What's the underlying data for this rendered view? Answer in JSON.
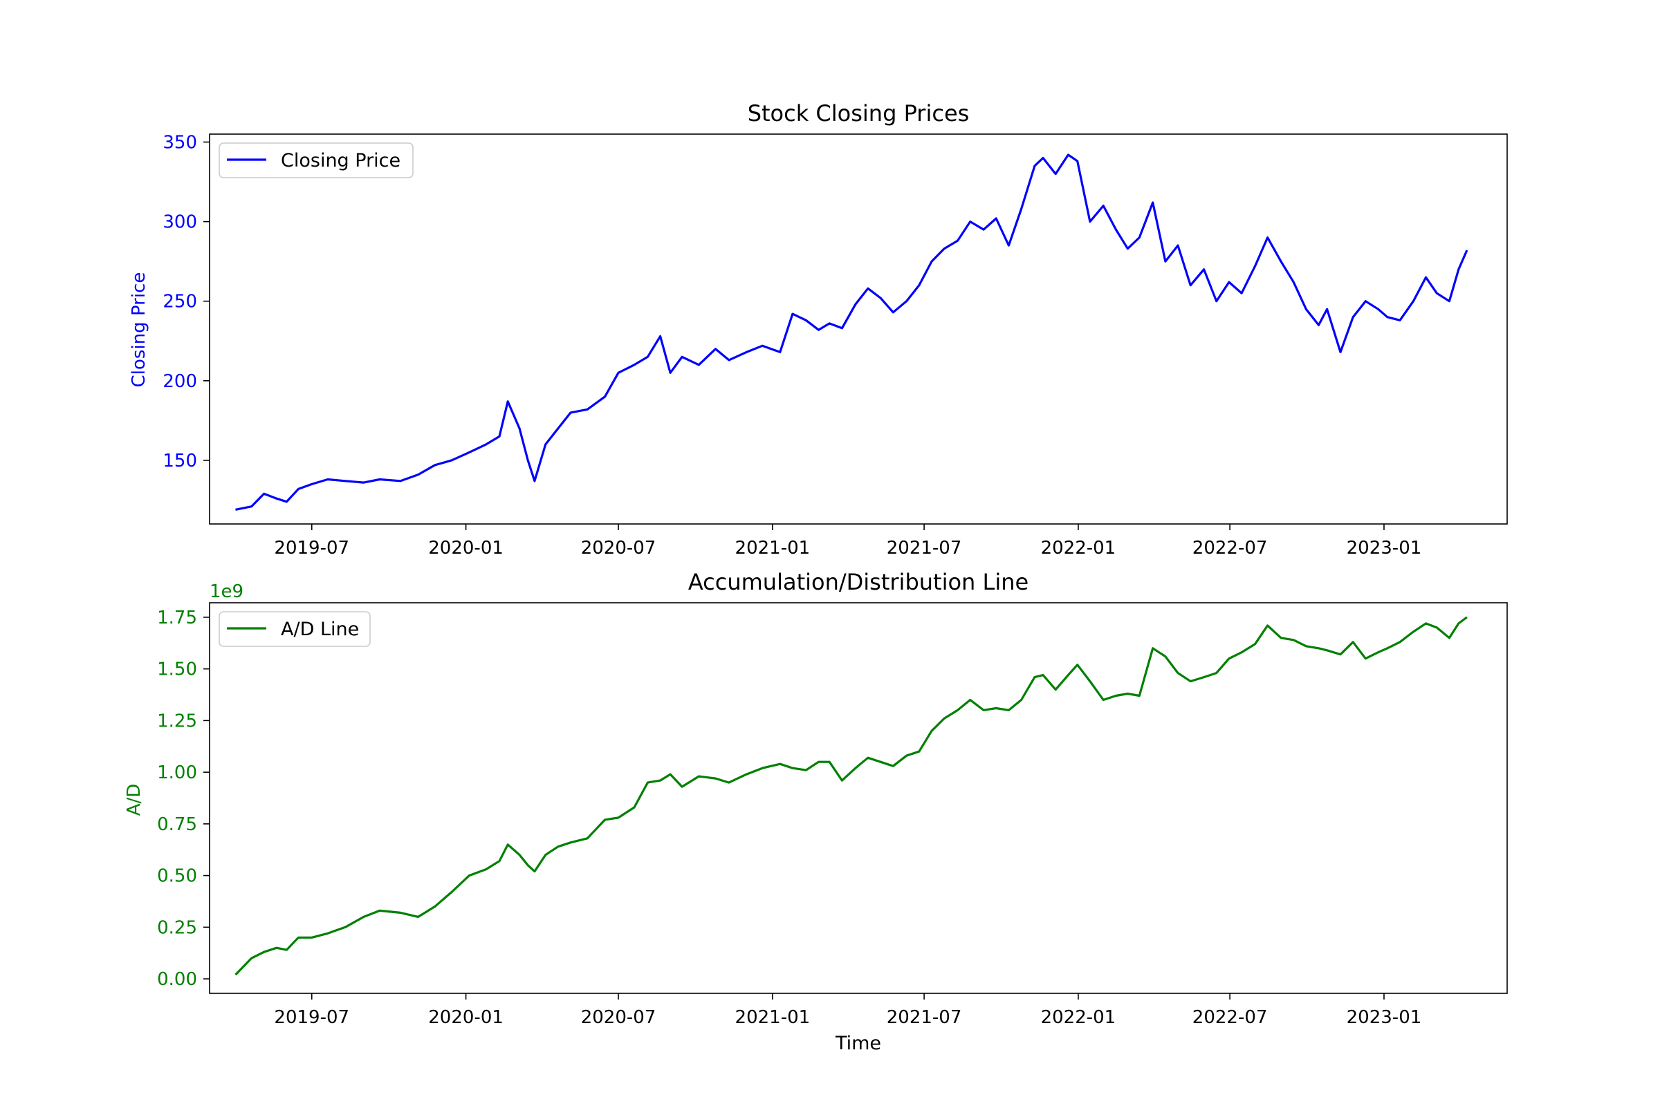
{
  "chart_data": [
    {
      "type": "line",
      "title": "Stock Closing Prices",
      "xlabel": "",
      "ylabel": "Closing Price",
      "ylim": [
        110,
        355
      ],
      "xlim": [
        "2019-03-01",
        "2023-05-28"
      ],
      "grid": false,
      "legend": "top-left",
      "color": "#0000ff",
      "x_ticks": [
        "2019-07",
        "2020-01",
        "2020-07",
        "2021-01",
        "2021-07",
        "2022-01",
        "2022-07",
        "2023-01"
      ],
      "y_ticks": [
        150,
        200,
        250,
        300,
        350
      ],
      "series": [
        {
          "name": "Closing Price",
          "x": [
            "2019-04-01",
            "2019-04-20",
            "2019-05-05",
            "2019-05-20",
            "2019-06-01",
            "2019-06-15",
            "2019-07-01",
            "2019-07-20",
            "2019-08-10",
            "2019-09-01",
            "2019-09-20",
            "2019-10-15",
            "2019-11-05",
            "2019-11-25",
            "2019-12-15",
            "2020-01-05",
            "2020-01-25",
            "2020-02-10",
            "2020-02-20",
            "2020-03-05",
            "2020-03-15",
            "2020-03-23",
            "2020-04-05",
            "2020-04-20",
            "2020-05-05",
            "2020-05-25",
            "2020-06-15",
            "2020-07-01",
            "2020-07-20",
            "2020-08-05",
            "2020-08-20",
            "2020-09-01",
            "2020-09-15",
            "2020-10-05",
            "2020-10-25",
            "2020-11-10",
            "2020-12-01",
            "2020-12-20",
            "2021-01-10",
            "2021-01-25",
            "2021-02-10",
            "2021-02-25",
            "2021-03-10",
            "2021-03-25",
            "2021-04-10",
            "2021-04-25",
            "2021-05-10",
            "2021-05-25",
            "2021-06-10",
            "2021-06-25",
            "2021-07-10",
            "2021-07-25",
            "2021-08-10",
            "2021-08-25",
            "2021-09-10",
            "2021-09-25",
            "2021-10-10",
            "2021-10-25",
            "2021-11-10",
            "2021-11-20",
            "2021-12-05",
            "2021-12-20",
            "2021-12-31",
            "2022-01-15",
            "2022-01-31",
            "2022-02-15",
            "2022-03-01",
            "2022-03-15",
            "2022-03-31",
            "2022-04-15",
            "2022-04-30",
            "2022-05-15",
            "2022-05-31",
            "2022-06-15",
            "2022-06-30",
            "2022-07-15",
            "2022-07-31",
            "2022-08-15",
            "2022-08-31",
            "2022-09-15",
            "2022-09-30",
            "2022-10-15",
            "2022-10-25",
            "2022-11-10",
            "2022-11-25",
            "2022-12-10",
            "2022-12-25",
            "2023-01-05",
            "2023-01-20",
            "2023-02-05",
            "2023-02-20",
            "2023-03-05",
            "2023-03-20",
            "2023-03-31",
            "2023-04-10"
          ],
          "y": [
            119,
            121,
            129,
            126,
            124,
            132,
            135,
            138,
            137,
            136,
            138,
            137,
            141,
            147,
            150,
            155,
            160,
            165,
            187,
            170,
            150,
            137,
            160,
            170,
            180,
            182,
            190,
            205,
            210,
            215,
            228,
            205,
            215,
            210,
            220,
            213,
            218,
            222,
            218,
            242,
            238,
            232,
            236,
            233,
            248,
            258,
            252,
            243,
            250,
            260,
            275,
            283,
            288,
            300,
            295,
            302,
            285,
            308,
            335,
            340,
            330,
            342,
            338,
            300,
            310,
            295,
            283,
            290,
            312,
            275,
            285,
            260,
            270,
            250,
            262,
            255,
            272,
            290,
            275,
            262,
            245,
            235,
            245,
            218,
            240,
            250,
            245,
            240,
            238,
            250,
            265,
            255,
            250,
            270,
            282
          ]
        }
      ]
    },
    {
      "type": "line",
      "title": "Accumulation/Distribution Line",
      "xlabel": "Time",
      "ylabel": "A/D",
      "scale_label": "1e9",
      "ylim": [
        -0.07,
        1.82
      ],
      "xlim": [
        "2019-03-01",
        "2023-05-28"
      ],
      "grid": false,
      "legend": "top-left",
      "color": "#008000",
      "x_ticks": [
        "2019-07",
        "2020-01",
        "2020-07",
        "2021-01",
        "2021-07",
        "2022-01",
        "2022-07",
        "2023-01"
      ],
      "y_ticks": [
        "0.00",
        "0.25",
        "0.50",
        "0.75",
        "1.00",
        "1.25",
        "1.50",
        "1.75"
      ],
      "series": [
        {
          "name": "A/D Line",
          "x": [
            "2019-04-01",
            "2019-04-20",
            "2019-05-05",
            "2019-05-20",
            "2019-06-01",
            "2019-06-15",
            "2019-07-01",
            "2019-07-20",
            "2019-08-10",
            "2019-09-01",
            "2019-09-20",
            "2019-10-15",
            "2019-11-05",
            "2019-11-25",
            "2019-12-15",
            "2020-01-05",
            "2020-01-25",
            "2020-02-10",
            "2020-02-20",
            "2020-03-05",
            "2020-03-15",
            "2020-03-23",
            "2020-04-05",
            "2020-04-20",
            "2020-05-05",
            "2020-05-25",
            "2020-06-15",
            "2020-07-01",
            "2020-07-20",
            "2020-08-05",
            "2020-08-20",
            "2020-09-01",
            "2020-09-15",
            "2020-10-05",
            "2020-10-25",
            "2020-11-10",
            "2020-12-01",
            "2020-12-20",
            "2021-01-10",
            "2021-01-25",
            "2021-02-10",
            "2021-02-25",
            "2021-03-10",
            "2021-03-25",
            "2021-04-10",
            "2021-04-25",
            "2021-05-10",
            "2021-05-25",
            "2021-06-10",
            "2021-06-25",
            "2021-07-10",
            "2021-07-25",
            "2021-08-10",
            "2021-08-25",
            "2021-09-10",
            "2021-09-25",
            "2021-10-10",
            "2021-10-25",
            "2021-11-10",
            "2021-11-20",
            "2021-12-05",
            "2021-12-20",
            "2021-12-31",
            "2022-01-15",
            "2022-01-31",
            "2022-02-15",
            "2022-03-01",
            "2022-03-15",
            "2022-03-31",
            "2022-04-15",
            "2022-04-30",
            "2022-05-15",
            "2022-05-31",
            "2022-06-15",
            "2022-06-30",
            "2022-07-15",
            "2022-07-31",
            "2022-08-15",
            "2022-08-31",
            "2022-09-15",
            "2022-09-30",
            "2022-10-15",
            "2022-10-25",
            "2022-11-10",
            "2022-11-25",
            "2022-12-10",
            "2022-12-25",
            "2023-01-05",
            "2023-01-20",
            "2023-02-05",
            "2023-02-20",
            "2023-03-05",
            "2023-03-20",
            "2023-03-31",
            "2023-04-10"
          ],
          "y": [
            0.02,
            0.1,
            0.13,
            0.15,
            0.14,
            0.2,
            0.2,
            0.22,
            0.25,
            0.3,
            0.33,
            0.32,
            0.3,
            0.35,
            0.42,
            0.5,
            0.53,
            0.57,
            0.65,
            0.6,
            0.55,
            0.52,
            0.6,
            0.64,
            0.66,
            0.68,
            0.77,
            0.78,
            0.83,
            0.95,
            0.96,
            0.99,
            0.93,
            0.98,
            0.97,
            0.95,
            0.99,
            1.02,
            1.04,
            1.02,
            1.01,
            1.05,
            1.05,
            0.96,
            1.02,
            1.07,
            1.05,
            1.03,
            1.08,
            1.1,
            1.2,
            1.26,
            1.3,
            1.35,
            1.3,
            1.31,
            1.3,
            1.35,
            1.46,
            1.47,
            1.4,
            1.47,
            1.52,
            1.44,
            1.35,
            1.37,
            1.38,
            1.37,
            1.6,
            1.56,
            1.48,
            1.44,
            1.46,
            1.48,
            1.55,
            1.58,
            1.62,
            1.71,
            1.65,
            1.64,
            1.61,
            1.6,
            1.59,
            1.57,
            1.63,
            1.55,
            1.58,
            1.6,
            1.63,
            1.68,
            1.72,
            1.7,
            1.65,
            1.72,
            1.75
          ]
        }
      ]
    }
  ]
}
